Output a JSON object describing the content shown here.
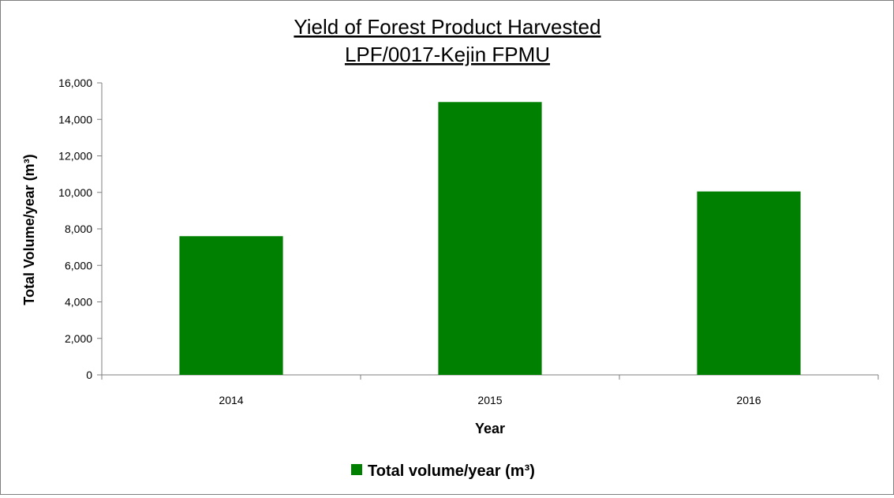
{
  "chart_data": {
    "type": "bar",
    "title": "Yield of Forest Product Harvested",
    "subtitle": "LPF/0017-Kejin FPMU",
    "xlabel": "Year",
    "ylabel": "Total Volume/year (m³)",
    "categories": [
      "2014",
      "2015",
      "2016"
    ],
    "series": [
      {
        "name": "Total volume/year (m³)",
        "values": [
          7600,
          14950,
          10050
        ],
        "color": "#008000"
      }
    ],
    "ylim": [
      0,
      16000
    ],
    "yticks": [
      0,
      2000,
      4000,
      6000,
      8000,
      10000,
      12000,
      14000,
      16000
    ],
    "ytick_labels": [
      "0",
      "2,000",
      "4,000",
      "6,000",
      "8,000",
      "10,000",
      "12,000",
      "14,000",
      "16,000"
    ],
    "grid": false,
    "legend_position": "bottom",
    "axis_color": "#7f7f7f"
  }
}
